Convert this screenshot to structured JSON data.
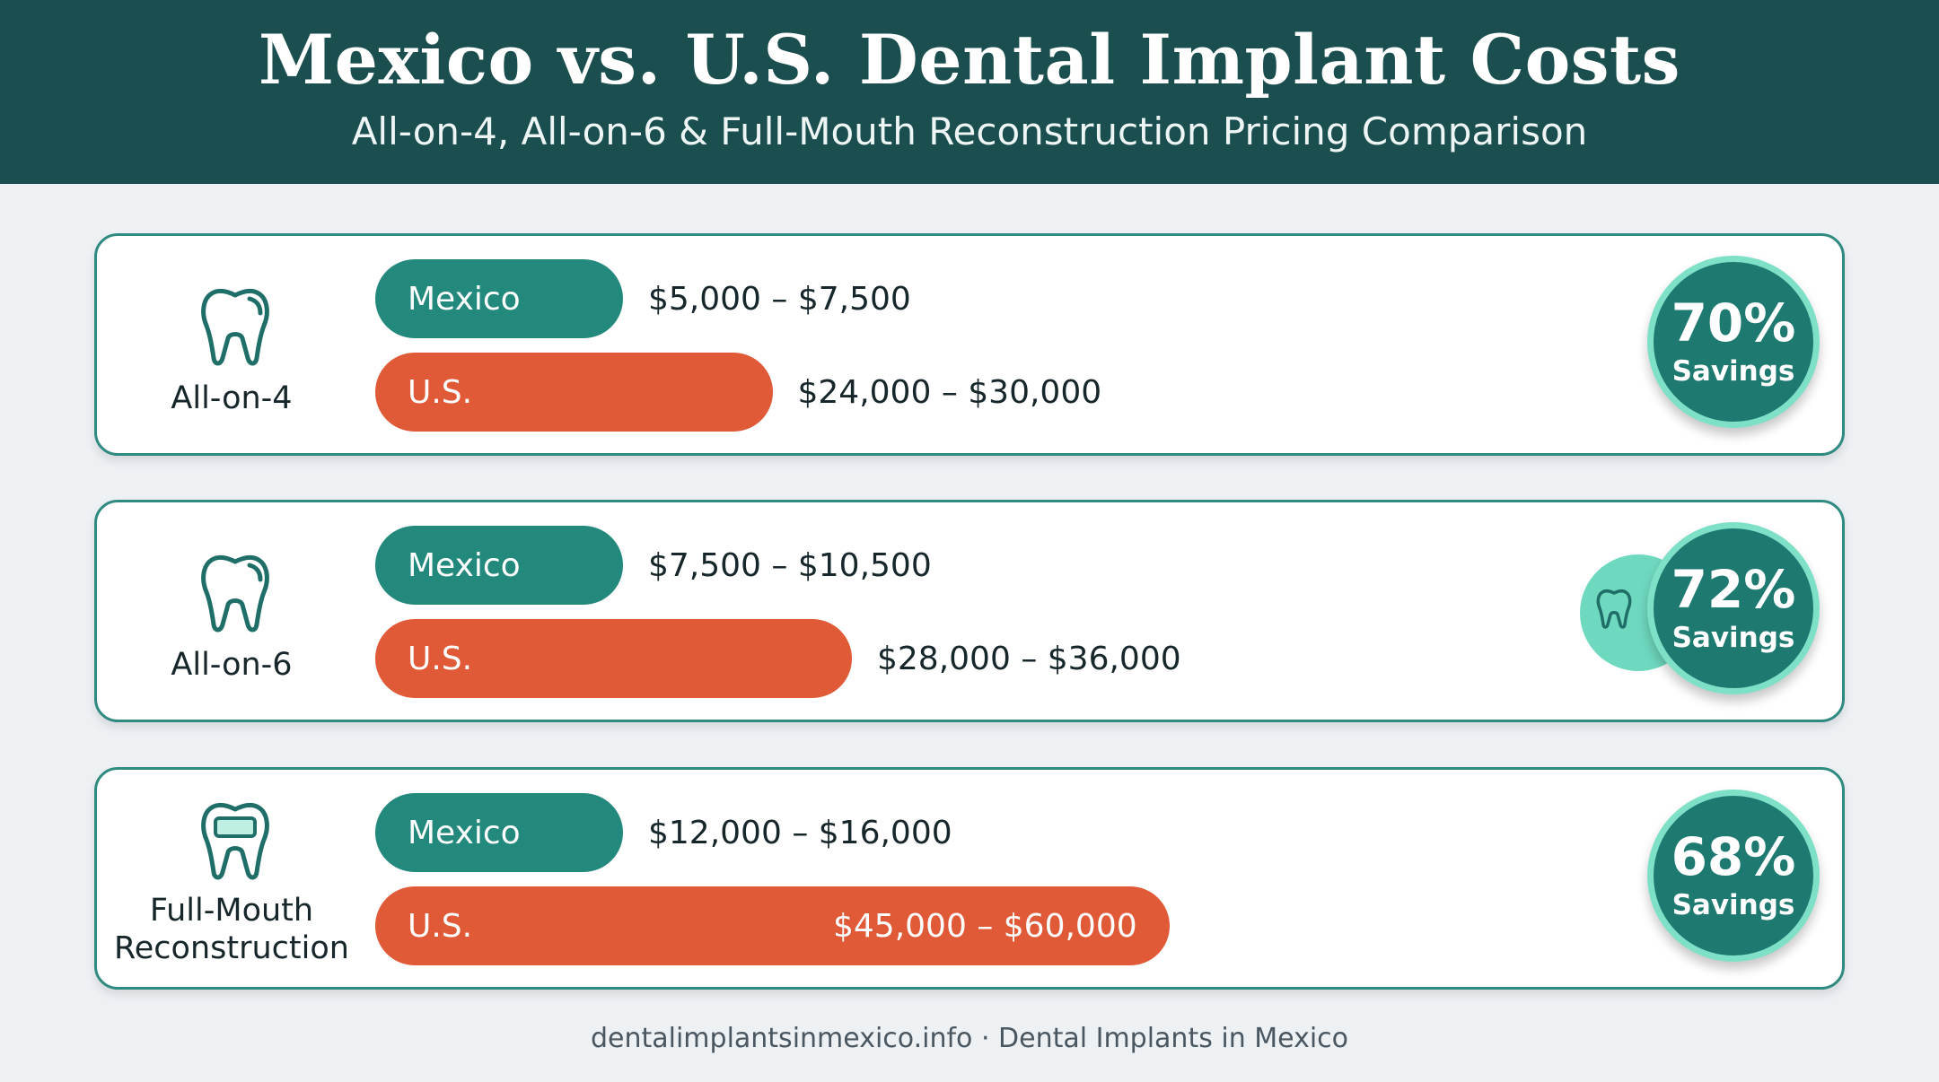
{
  "header": {
    "title": "Mexico vs. U.S. Dental Implant Costs",
    "subtitle": "All-on-4, All-on-6 & Full-Mouth Reconstruction Pricing Comparison"
  },
  "colors": {
    "header_bg": "#1b4e4f",
    "mexico_bar": "#23897d",
    "us_bar": "#e05a38",
    "badge": "#1e7a70",
    "badge_ring": "#7fe0c8",
    "card_border": "#2f8a80"
  },
  "chart_data": {
    "type": "bar",
    "orientation": "horizontal",
    "categories": [
      "All-on-4",
      "All-on-6",
      "Full-Mouth Reconstruction"
    ],
    "series": [
      {
        "name": "Mexico",
        "ranges": [
          [
            5000,
            7500
          ],
          [
            7500,
            10500
          ],
          [
            12000,
            16000
          ]
        ],
        "labels": [
          "$5,000 – $7,500",
          "$7,500 – $10,500",
          "$12,000 – $16,000"
        ]
      },
      {
        "name": "U.S.",
        "ranges": [
          [
            24000,
            30000
          ],
          [
            28000,
            36000
          ],
          [
            45000,
            60000
          ]
        ],
        "labels": [
          "$24,000 – $30,000",
          "$28,000 – $36,000",
          "$45,000 – $60,000"
        ]
      }
    ],
    "savings": [
      {
        "percent": "70%",
        "label": "Savings"
      },
      {
        "percent": "72%",
        "label": "Savings"
      },
      {
        "percent": "68%",
        "label": "Savings"
      }
    ],
    "icons": [
      "tooth-icon",
      "tooth-icon",
      "tooth-bridge-icon"
    ]
  },
  "footer": {
    "text": "dentalimplantsinmexico.info · Dental Implants in Mexico"
  }
}
